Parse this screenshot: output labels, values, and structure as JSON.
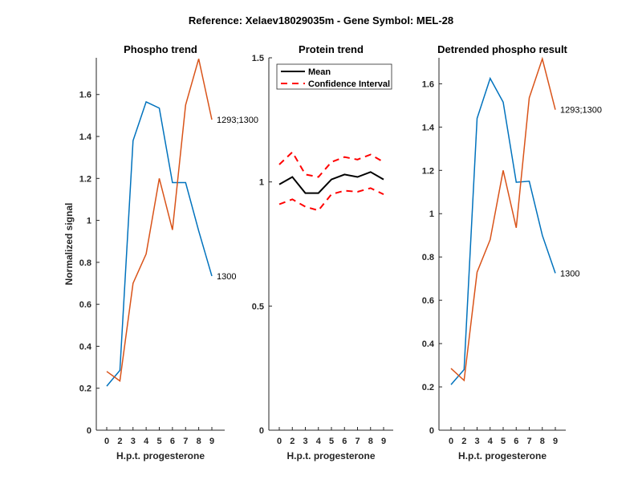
{
  "suptitle": "Reference:  Xelaev18029035m - Gene Symbol:  MEL-28",
  "colors": {
    "blue": "#0072BD",
    "orange": "#D95319",
    "mean": "#000000",
    "ci": "#FF0000",
    "axis": "#262626"
  },
  "chart_data": [
    {
      "type": "line",
      "title": "Phospho trend",
      "xlabel": "H.p.t. progesterone",
      "ylabel": "Normalized signal",
      "categories": [
        "0",
        "2",
        "3",
        "4",
        "5",
        "6",
        "7",
        "8",
        "9"
      ],
      "ylim": [
        0,
        1.775
      ],
      "yticks": [
        0,
        0.2,
        0.4,
        0.6,
        0.8,
        1,
        1.2,
        1.4,
        1.6
      ],
      "ytick_labels": [
        "0",
        "0.2",
        "0.4",
        "0.6",
        "0.8",
        "1",
        "1.2",
        "1.4",
        "1.6"
      ],
      "series": [
        {
          "name": "1300",
          "color": "#0072BD",
          "values": [
            0.21,
            0.285,
            1.38,
            1.565,
            1.535,
            1.18,
            1.18,
            0.95,
            0.735
          ]
        },
        {
          "name": "1293;1300",
          "color": "#D95319",
          "values": [
            0.28,
            0.235,
            0.7,
            0.84,
            1.2,
            0.955,
            1.55,
            1.77,
            1.48
          ]
        }
      ]
    },
    {
      "type": "line",
      "title": "Protein trend",
      "xlabel": "H.p.t. progesterone",
      "ylabel": "",
      "categories": [
        "0",
        "2",
        "3",
        "4",
        "5",
        "6",
        "7",
        "8",
        "9"
      ],
      "ylim": [
        0,
        1.5
      ],
      "yticks": [
        0,
        0.5,
        1,
        1.5
      ],
      "ytick_labels": [
        "0",
        "0.5",
        "1",
        "1.5"
      ],
      "legend": {
        "placement": "top",
        "entries": [
          "Mean",
          "Confidence Interval"
        ]
      },
      "series": [
        {
          "name": "Mean",
          "color": "#000000",
          "style": "solid",
          "values": [
            0.99,
            1.02,
            0.955,
            0.955,
            1.01,
            1.03,
            1.02,
            1.04,
            1.01
          ]
        },
        {
          "name": "Confidence Interval (upper)",
          "color": "#FF0000",
          "style": "dashed",
          "values": [
            1.07,
            1.12,
            1.03,
            1.02,
            1.08,
            1.1,
            1.09,
            1.11,
            1.08
          ]
        },
        {
          "name": "Confidence Interval (lower)",
          "color": "#FF0000",
          "style": "dashed",
          "values": [
            0.91,
            0.93,
            0.9,
            0.885,
            0.95,
            0.965,
            0.96,
            0.975,
            0.95
          ]
        }
      ]
    },
    {
      "type": "line",
      "title": "Detrended phospho result",
      "xlabel": "H.p.t. progesterone",
      "ylabel": "",
      "categories": [
        "0",
        "2",
        "3",
        "4",
        "5",
        "6",
        "7",
        "8",
        "9"
      ],
      "ylim": [
        0,
        1.72
      ],
      "yticks": [
        0,
        0.2,
        0.4,
        0.6,
        0.8,
        1,
        1.2,
        1.4,
        1.6
      ],
      "ytick_labels": [
        "0",
        "0.2",
        "0.4",
        "0.6",
        "0.8",
        "1",
        "1.2",
        "1.4",
        "1.6"
      ],
      "series": [
        {
          "name": "1300",
          "color": "#0072BD",
          "values": [
            0.21,
            0.28,
            1.44,
            1.625,
            1.515,
            1.145,
            1.15,
            0.9,
            0.725
          ]
        },
        {
          "name": "1293;1300",
          "color": "#D95319",
          "values": [
            0.285,
            0.23,
            0.73,
            0.88,
            1.2,
            0.935,
            1.535,
            1.715,
            1.48
          ]
        }
      ]
    }
  ]
}
